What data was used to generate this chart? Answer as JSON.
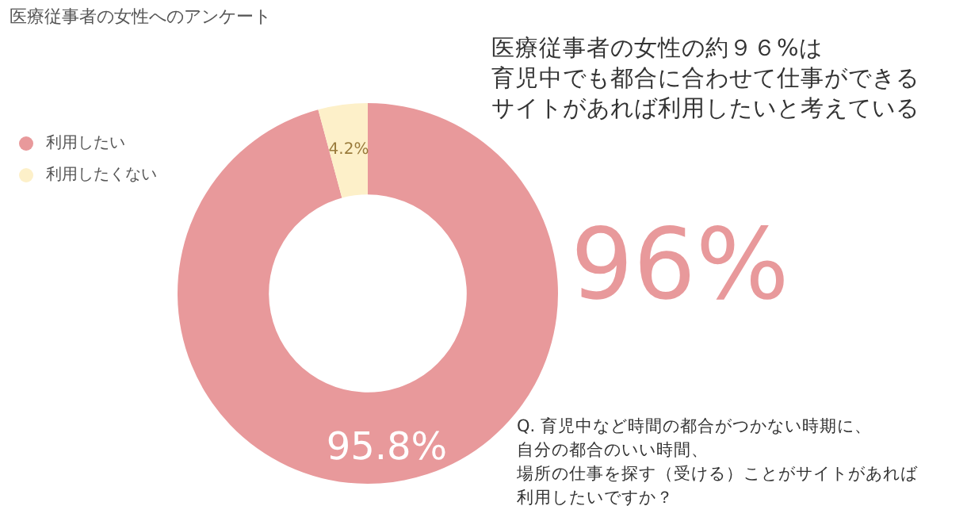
{
  "chart_data": {
    "type": "donut",
    "title": "医療従事者の女性へのアンケート",
    "categories": [
      "利用したい",
      "利用したくない"
    ],
    "values": [
      95.8,
      4.2
    ],
    "colors": [
      "#e8999b",
      "#fdf0c9"
    ],
    "value_labels": [
      "95.8%",
      "4.2%"
    ],
    "legend": "top left",
    "annotations": [
      "医療従事者の女性の約９６%は",
      "育児中でも都合に合わせて仕事ができる",
      "サイトがあれば利用したいと考えている",
      "96%",
      "Q. 育児中など時間の都合がつかない時期に、",
      "自分の都合のいい時間、",
      "場所の仕事を探す（受ける）ことがサイトがあれば",
      "利用したいですか？"
    ]
  }
}
